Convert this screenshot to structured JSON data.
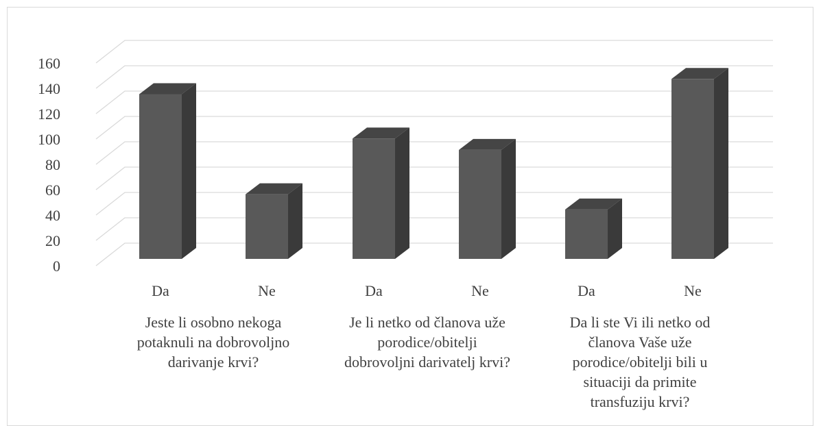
{
  "chart_data": {
    "type": "bar",
    "style": "3d-column",
    "categories": [
      "Da",
      "Ne",
      "Da",
      "Ne",
      "Da",
      "Ne"
    ],
    "groups": [
      {
        "label_lines": [
          "Jeste li osobno nekoga",
          "potaknuli na dobrovoljno",
          "darivanje krvi?"
        ]
      },
      {
        "label_lines": [
          "Je li netko od članova uže",
          "porodice/obitelji",
          "dobrovoljni darivatelj krvi?"
        ]
      },
      {
        "label_lines": [
          "Da li ste Vi ili netko od",
          "članova Vaše uže",
          "porodice/obitelji bili u",
          "situaciji da primite",
          "transfuziju krvi?"
        ]
      }
    ],
    "values": [
      130,
      51,
      95,
      86,
      39,
      142
    ],
    "yticks": [
      0,
      20,
      40,
      60,
      80,
      100,
      120,
      140,
      160
    ],
    "ylim": [
      0,
      160
    ],
    "grid": true,
    "legend": "none",
    "colors": {
      "bar_front": "#595959",
      "bar_side": "#3a3a3a",
      "bar_top": "#454545",
      "grid": "#d9d9d9",
      "text": "#404040"
    }
  }
}
